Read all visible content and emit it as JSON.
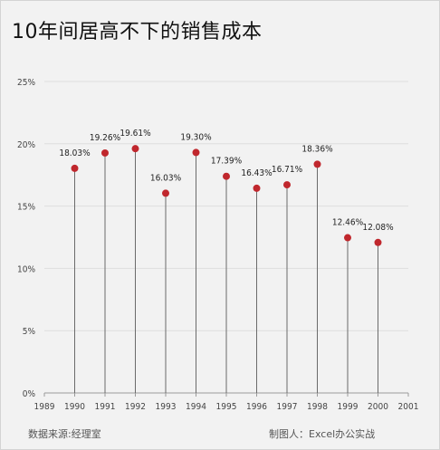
{
  "title": "10年间居高不下的销售成本",
  "footer": {
    "source": "数据来源:经理室",
    "credit": "制图人：Excel办公实战"
  },
  "chart_data": {
    "type": "scatter",
    "style": "lollipop",
    "title": "10年间居高不下的销售成本",
    "x": [
      1990,
      1991,
      1992,
      1993,
      1994,
      1995,
      1996,
      1997,
      1998,
      1999,
      2000
    ],
    "y": [
      18.03,
      19.26,
      19.61,
      16.03,
      19.3,
      17.39,
      16.43,
      16.71,
      18.36,
      12.46,
      12.08
    ],
    "data_labels": [
      "18.03%",
      "19.26%",
      "19.61%",
      "16.03%",
      "19.30%",
      "17.39%",
      "16.43%",
      "16.71%",
      "18.36%",
      "12.46%",
      "12.08%"
    ],
    "xlim": [
      1989,
      2001
    ],
    "x_ticks": [
      "1989",
      "1990",
      "1991",
      "1992",
      "1993",
      "1994",
      "1995",
      "1996",
      "1997",
      "1998",
      "1999",
      "2000",
      "2001"
    ],
    "ylim": [
      0,
      25
    ],
    "y_ticks": [
      "0%",
      "5%",
      "10%",
      "15%",
      "20%",
      "25%"
    ],
    "gridlines": "horizontal",
    "colors": {
      "marker": "#c0272d",
      "stem": "#6b6b6b",
      "grid": "#dedede",
      "axis": "#9a9a9a"
    }
  }
}
